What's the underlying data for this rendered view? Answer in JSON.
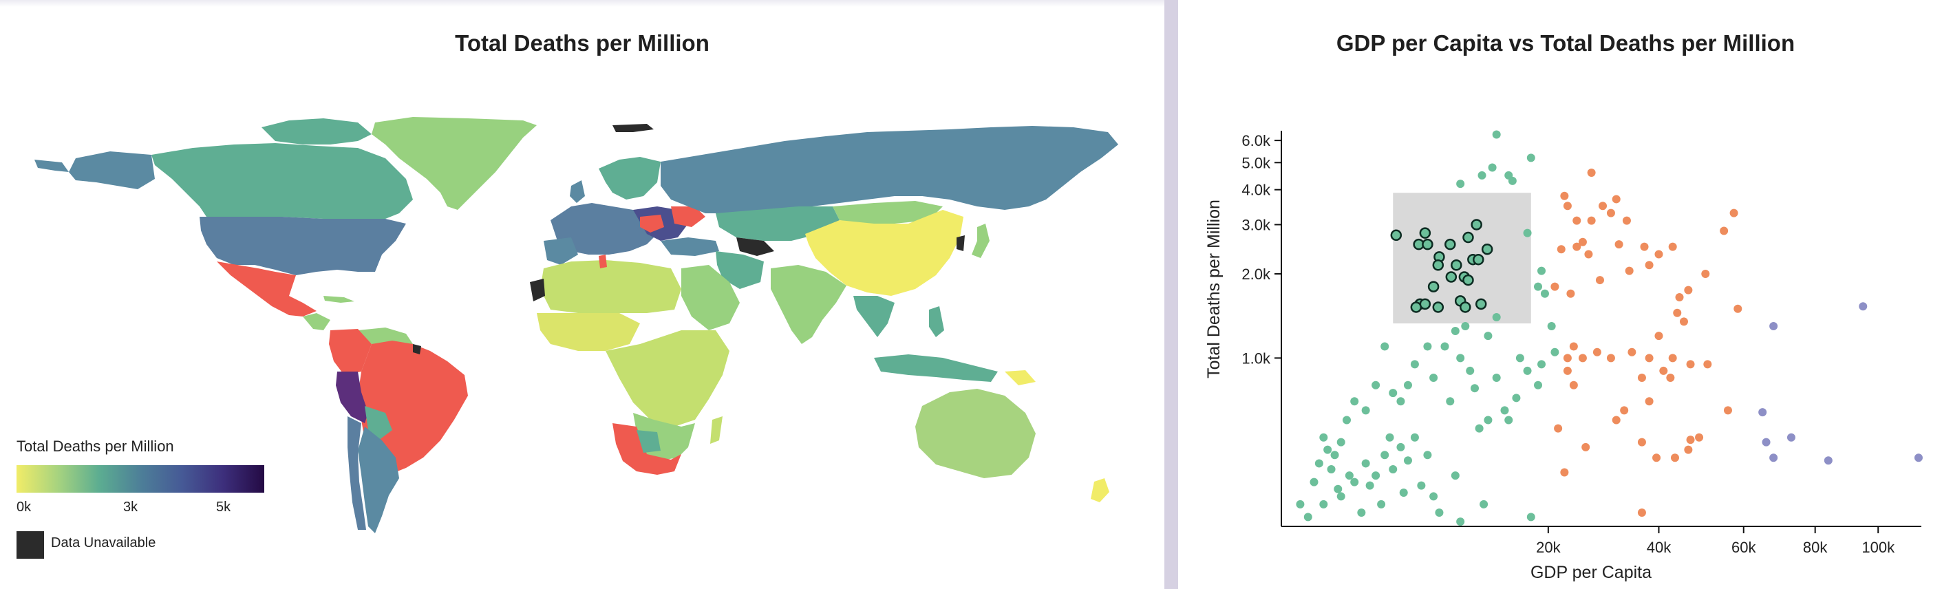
{
  "map_panel": {
    "title": "Total Deaths per Million",
    "legend": {
      "title": "Total Deaths per Million",
      "ticks": [
        "0k",
        "3k",
        "5k"
      ],
      "unavailable_label": "Data Unavailable",
      "colors": [
        "#f1ec68",
        "#a7d37f",
        "#5cad91",
        "#4d7f98",
        "#465a96",
        "#3d2f7c",
        "#240a44"
      ],
      "unavailable_color": "#2b2b2b",
      "highlight_color": "#ef5a4f"
    }
  },
  "chart_data": {
    "type": "scatter",
    "title": "GDP per Capita vs Total Deaths per Million",
    "xlabel": "GDP per Capita",
    "ylabel": "Total Deaths per Million",
    "x_scale": "sqrt",
    "y_scale": "log",
    "xlim": [
      0,
      115000
    ],
    "ylim": [
      250,
      6500
    ],
    "x_ticks": [
      {
        "value": 20000,
        "label": "20k"
      },
      {
        "value": 40000,
        "label": "40k"
      },
      {
        "value": 60000,
        "label": "60k"
      },
      {
        "value": 80000,
        "label": "80k"
      },
      {
        "value": 100000,
        "label": "100k"
      }
    ],
    "y_ticks": [
      {
        "value": 1000,
        "label": "1.0k"
      },
      {
        "value": 2000,
        "label": "2.0k"
      },
      {
        "value": 3000,
        "label": "3.0k"
      },
      {
        "value": 4000,
        "label": "4.0k"
      },
      {
        "value": 5000,
        "label": "5.0k"
      },
      {
        "value": 6000,
        "label": "6.0k"
      }
    ],
    "brush": {
      "x": [
        3500,
        17500
      ],
      "y": [
        1330,
        3900
      ]
    },
    "series": [
      {
        "color": "#6cbf9a",
        "points": [
          [
            13000,
            6300
          ],
          [
            17500,
            5200
          ],
          [
            12500,
            4800
          ],
          [
            11300,
            4500
          ],
          [
            14500,
            4500
          ],
          [
            9000,
            4200
          ],
          [
            15000,
            4300
          ],
          [
            17000,
            2800
          ],
          [
            19000,
            2050
          ],
          [
            18500,
            1800
          ],
          [
            19500,
            1700
          ],
          [
            20500,
            1300
          ],
          [
            19000,
            950
          ],
          [
            21000,
            1050
          ],
          [
            18500,
            800
          ],
          [
            17000,
            900
          ],
          [
            16000,
            1000
          ],
          [
            15500,
            720
          ],
          [
            14000,
            650
          ],
          [
            12000,
            600
          ],
          [
            10000,
            900
          ],
          [
            9000,
            1000
          ],
          [
            8000,
            700
          ],
          [
            7500,
            1100
          ],
          [
            6000,
            1100
          ],
          [
            5000,
            950
          ],
          [
            4500,
            800
          ],
          [
            4000,
            700
          ],
          [
            3500,
            750
          ],
          [
            3000,
            1100
          ],
          [
            2500,
            800
          ],
          [
            2000,
            650
          ],
          [
            1500,
            700
          ],
          [
            1200,
            600
          ],
          [
            1000,
            500
          ],
          [
            800,
            450
          ],
          [
            500,
            520
          ],
          [
            300,
            360
          ],
          [
            200,
            270
          ],
          [
            100,
            300
          ],
          [
            500,
            300
          ],
          [
            1000,
            320
          ],
          [
            1500,
            360
          ],
          [
            2000,
            420
          ],
          [
            2500,
            380
          ],
          [
            3000,
            450
          ],
          [
            3500,
            400
          ],
          [
            4000,
            480
          ],
          [
            4500,
            430
          ],
          [
            5000,
            520
          ],
          [
            6000,
            450
          ],
          [
            7000,
            280
          ],
          [
            9000,
            260
          ],
          [
            11000,
            560
          ],
          [
            13000,
            850
          ],
          [
            14500,
            600
          ],
          [
            17500,
            270
          ],
          [
            11500,
            300
          ],
          [
            8500,
            380
          ],
          [
            6500,
            320
          ],
          [
            4200,
            330
          ],
          [
            2800,
            300
          ],
          [
            1800,
            280
          ],
          [
            1300,
            380
          ],
          [
            900,
            340
          ],
          [
            700,
            400
          ],
          [
            600,
            470
          ],
          [
            400,
            420
          ],
          [
            2200,
            350
          ],
          [
            3300,
            520
          ],
          [
            5500,
            350
          ],
          [
            10500,
            780
          ],
          [
            12000,
            1200
          ],
          [
            13000,
            1400
          ],
          [
            8500,
            1250
          ],
          [
            9500,
            1300
          ],
          [
            6500,
            850
          ]
        ]
      },
      {
        "color": "#6cbf9a",
        "outlined": true,
        "points": [
          [
            3700,
            2750
          ],
          [
            5800,
            2800
          ],
          [
            5300,
            2550
          ],
          [
            6000,
            2550
          ],
          [
            7000,
            2300
          ],
          [
            8000,
            2550
          ],
          [
            8600,
            2150
          ],
          [
            9800,
            2700
          ],
          [
            10700,
            3000
          ],
          [
            10300,
            2250
          ],
          [
            10900,
            2250
          ],
          [
            11900,
            2450
          ],
          [
            8100,
            1950
          ],
          [
            9400,
            1950
          ],
          [
            9800,
            1900
          ],
          [
            6500,
            1800
          ],
          [
            5400,
            1560
          ],
          [
            5100,
            1520
          ],
          [
            5800,
            1560
          ],
          [
            6900,
            1520
          ],
          [
            9000,
            1600
          ],
          [
            9500,
            1520
          ],
          [
            11200,
            1560
          ],
          [
            6900,
            2150
          ]
        ]
      },
      {
        "color": "#ee8c5c",
        "points": [
          [
            27000,
            4600
          ],
          [
            22500,
            3800
          ],
          [
            23000,
            3500
          ],
          [
            29000,
            3500
          ],
          [
            31500,
            3700
          ],
          [
            30500,
            3300
          ],
          [
            27000,
            3100
          ],
          [
            24500,
            3100
          ],
          [
            33500,
            3100
          ],
          [
            25500,
            2600
          ],
          [
            24500,
            2500
          ],
          [
            22000,
            2450
          ],
          [
            26500,
            2350
          ],
          [
            32000,
            2550
          ],
          [
            37000,
            2500
          ],
          [
            40000,
            2350
          ],
          [
            43000,
            2500
          ],
          [
            34000,
            2050
          ],
          [
            38000,
            2150
          ],
          [
            28500,
            1900
          ],
          [
            21000,
            1800
          ],
          [
            23500,
            1700
          ],
          [
            46500,
            1750
          ],
          [
            44500,
            1650
          ],
          [
            50500,
            2000
          ],
          [
            55000,
            2850
          ],
          [
            57500,
            3300
          ],
          [
            58500,
            1500
          ],
          [
            45500,
            1350
          ],
          [
            44000,
            1450
          ],
          [
            40000,
            1200
          ],
          [
            38000,
            1000
          ],
          [
            34500,
            1050
          ],
          [
            30500,
            1000
          ],
          [
            28000,
            1050
          ],
          [
            23000,
            1000
          ],
          [
            24000,
            1100
          ],
          [
            25500,
            1000
          ],
          [
            23000,
            900
          ],
          [
            24000,
            800
          ],
          [
            36500,
            850
          ],
          [
            41000,
            900
          ],
          [
            43000,
            1000
          ],
          [
            42500,
            850
          ],
          [
            47000,
            950
          ],
          [
            51000,
            950
          ],
          [
            56000,
            650
          ],
          [
            31500,
            600
          ],
          [
            36500,
            500
          ],
          [
            39500,
            440
          ],
          [
            43500,
            440
          ],
          [
            46500,
            470
          ],
          [
            47000,
            510
          ],
          [
            49000,
            520
          ],
          [
            36500,
            280
          ],
          [
            22500,
            390
          ],
          [
            38000,
            700
          ],
          [
            33000,
            650
          ],
          [
            26000,
            480
          ],
          [
            21500,
            560
          ]
        ]
      },
      {
        "color": "#8d8fc6",
        "points": [
          [
            68000,
            1300
          ],
          [
            95000,
            1530
          ],
          [
            65000,
            640
          ],
          [
            73000,
            520
          ],
          [
            66000,
            500
          ],
          [
            68000,
            440
          ],
          [
            84000,
            430
          ],
          [
            114000,
            440
          ]
        ]
      }
    ]
  }
}
